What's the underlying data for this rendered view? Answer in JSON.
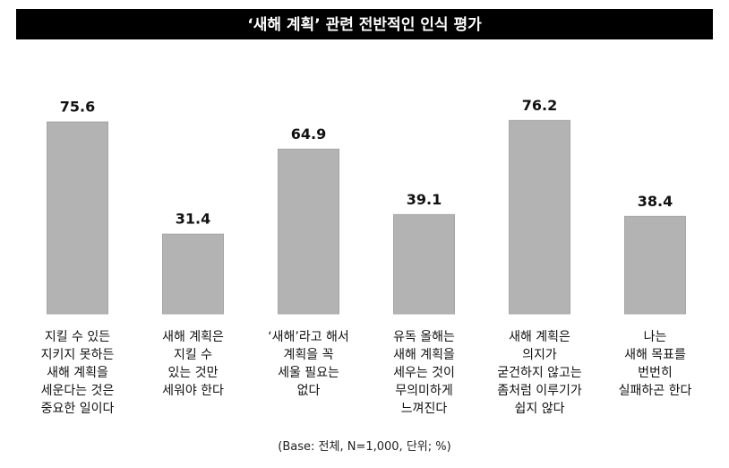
{
  "chart_data": {
    "type": "bar",
    "title": "‘새해 계획’ 관련 전반적인 인식 평가",
    "categories": [
      "지킬 수 있든\n지키지 못하든\n새해 계획을\n세운다는 것은\n중요한 일이다",
      "새해 계획은\n지킬 수\n있는 것만\n세워야 한다",
      "‘새해’라고 해서\n계획을 꼭\n세울 필요는\n없다",
      "유독 올해는\n새해 계획을\n세우는 것이\n무의미하게\n느껴진다",
      "새해 계획은\n의지가\n굳건하지 않고는\n좀처럼 이루기가\n쉽지 않다",
      "나는\n새해 목표를\n번번히\n실패하곤 한다"
    ],
    "values": [
      75.6,
      31.4,
      64.9,
      39.1,
      76.2,
      38.4
    ],
    "color": "#b3b3b3",
    "ylim": [
      0,
      100
    ],
    "note": "(Base: 전체, N=1,000, 단위; %)"
  }
}
